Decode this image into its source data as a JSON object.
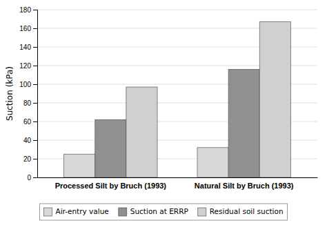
{
  "chart_data": {
    "type": "bar",
    "categories": [
      "Processed Silt by Bruch (1993)",
      "Natural Silt by Bruch (1993)"
    ],
    "series": [
      {
        "name": "Air-entry value",
        "color": "#d8d8d8",
        "values": [
          25,
          32
        ]
      },
      {
        "name": "Suction at ERRP",
        "color": "#909090",
        "values": [
          62,
          116
        ]
      },
      {
        "name": "Residual soil suction",
        "color": "#d0d0d0",
        "values": [
          97,
          167
        ]
      }
    ],
    "ylabel": "Suction (kPa)",
    "ylim": [
      0,
      180
    ],
    "yticks": [
      0,
      20,
      40,
      60,
      80,
      100,
      120,
      140,
      160,
      180
    ],
    "grid": true,
    "legend": "bottom"
  }
}
